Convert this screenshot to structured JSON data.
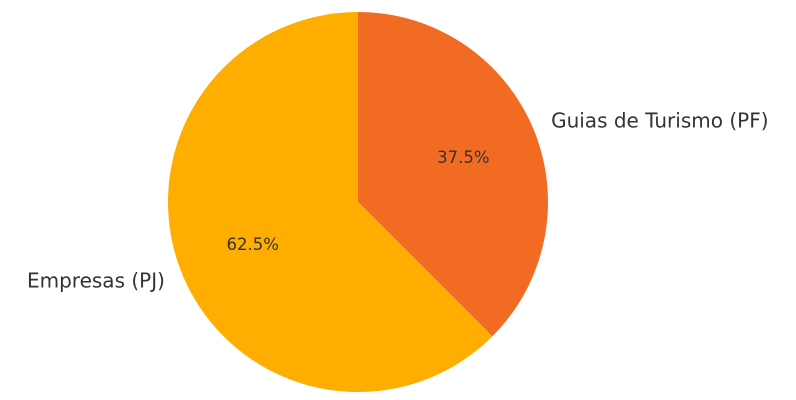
{
  "chart_data": {
    "type": "pie",
    "title": "",
    "start_angle_deg": 90,
    "direction": "clockwise",
    "legend": "none",
    "slices": [
      {
        "label": "Guias de Turismo (PF)",
        "value": 37.5,
        "pct_label": "37.5%",
        "color": "#F26B22"
      },
      {
        "label": "Empresas (PJ)",
        "value": 62.5,
        "pct_label": "62.5%",
        "color": "#FFAE00"
      }
    ]
  }
}
